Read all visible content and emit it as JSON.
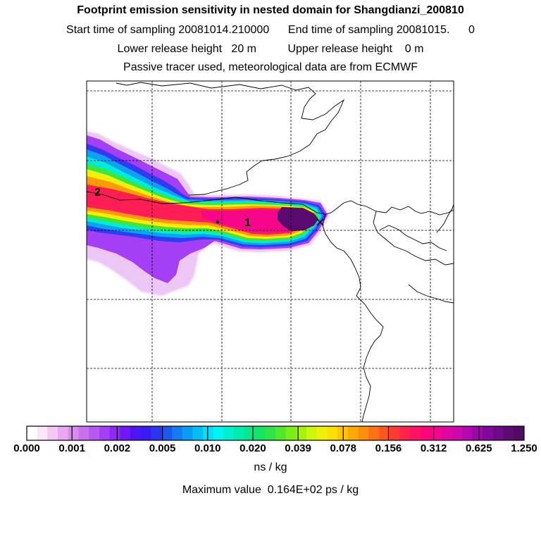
{
  "header": {
    "title": "Footprint emission sensitivity in nested domain for Shangdianzi_200810",
    "sampling": "Start time of sampling 20081014.210000      End time of sampling 20081015.      0",
    "release": "Lower release height   20 m          Upper release height    0 m",
    "tracer": "Passive tracer used, meteorological data are from ECMWF"
  },
  "map": {
    "markers": [
      {
        "label": "2"
      },
      {
        "label": "1"
      }
    ],
    "receptor_symbol": "×"
  },
  "colorbar": {
    "ticks": [
      "0.000",
      "0.001",
      "0.002",
      "0.005",
      "0.010",
      "0.020",
      "0.039",
      "0.078",
      "0.156",
      "0.312",
      "0.625",
      "1.250"
    ],
    "colors": [
      "#ffffff",
      "#fbe6fb",
      "#f3c8f5",
      "#e9a8f1",
      "#d98aee",
      "#c870f0",
      "#b857f1",
      "#a43ff5",
      "#8f28f7",
      "#6f17f6",
      "#4e14f3",
      "#3a1cf0",
      "#2b34f1",
      "#1d57f1",
      "#1479f2",
      "#0a9bf4",
      "#04bdf6",
      "#00dff9",
      "#00f4f2",
      "#00f0cf",
      "#00ecac",
      "#05e889",
      "#16e467",
      "#2ee448",
      "#51e82c",
      "#7aee16",
      "#a4f30a",
      "#ccf70a",
      "#efef09",
      "#ffde06",
      "#ffc405",
      "#ffa906",
      "#ff8e0c",
      "#ff7116",
      "#ff5620",
      "#ff3a34",
      "#ff234c",
      "#ff1164",
      "#ff057c",
      "#f4058f",
      "#e106a0",
      "#cc08ae",
      "#b308b4",
      "#9a08aa",
      "#82089b",
      "#6e0987",
      "#5e0a73",
      "#520b62"
    ],
    "unit": "ns / kg",
    "maximum": "Maximum value  0.164E+02 ps / kg"
  }
}
